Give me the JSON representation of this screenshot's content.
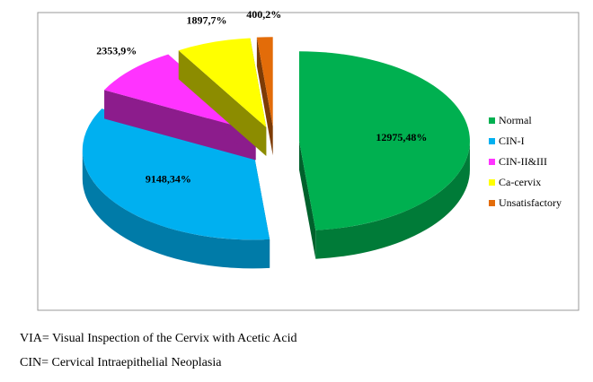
{
  "chart_data": {
    "type": "pie",
    "categories": [
      "Normal",
      "CIN-I",
      "CIN-II&III",
      "Ca-cervix",
      "Unsatisfactory"
    ],
    "values": [
      12975,
      9148,
      2353,
      1897,
      400
    ],
    "value_labels": [
      "12975,48%",
      "9148,34%",
      "2353,9%",
      "1897,7%",
      "400,2%"
    ],
    "colors": [
      "#00b050",
      "#00b0f0",
      "#ff33ff",
      "#ffff00",
      "#e36c09"
    ],
    "legend": "right"
  },
  "notes": [
    "VIA= Visual Inspection of the Cervix with Acetic Acid",
    "CIN= Cervical Intraepithelial Neoplasia"
  ]
}
